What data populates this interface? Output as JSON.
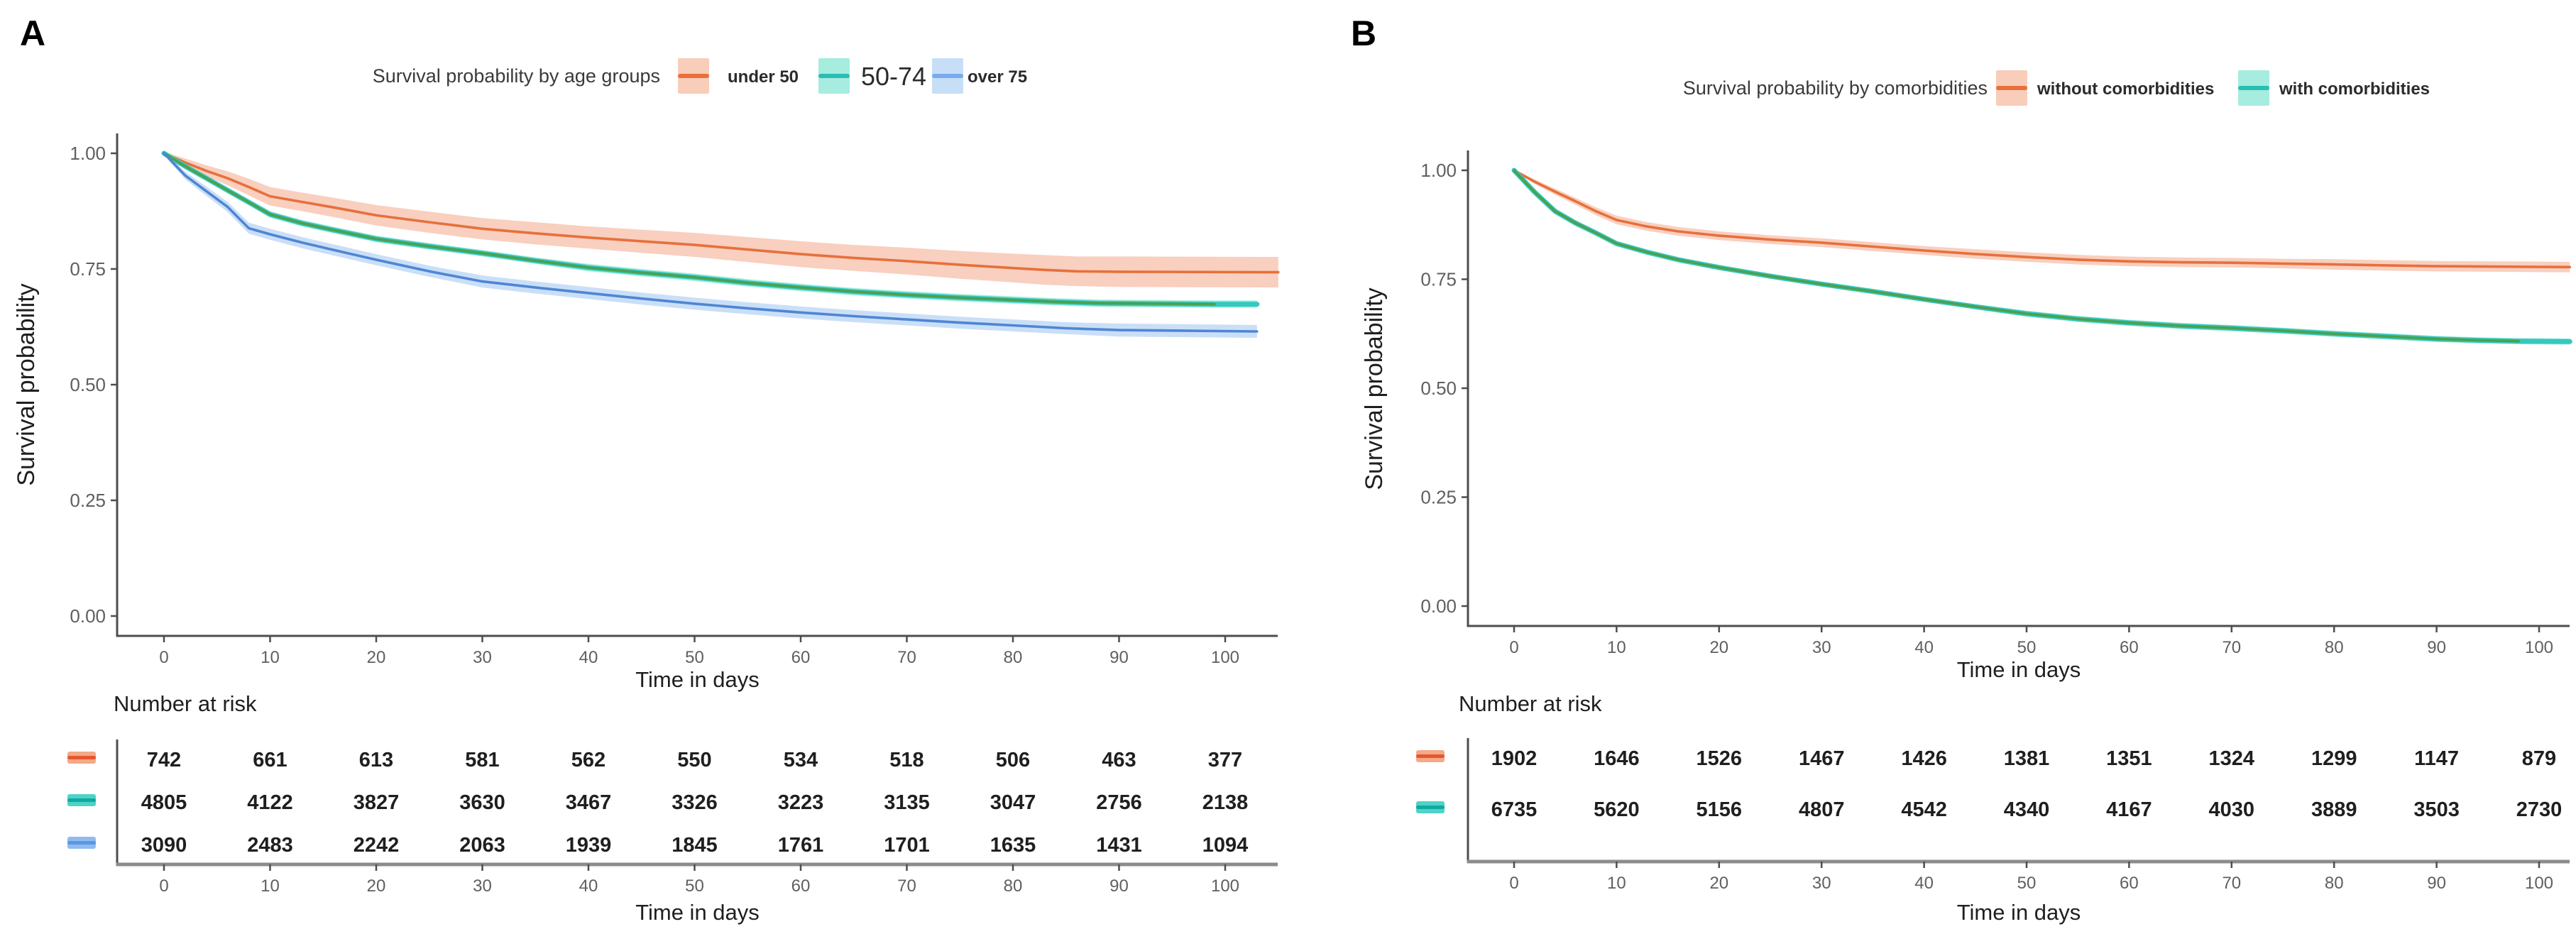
{
  "figure": {
    "background": "#ffffff"
  },
  "chart_data": [
    {
      "panel_label": "A",
      "type": "line",
      "subtype": "kaplan-meier-with-ci-bands",
      "legend": {
        "title": "Survival probability by age groups",
        "position": "top",
        "items": [
          {
            "label": "under 50",
            "line_color": "#E7703B",
            "band_color": "#F8CDBA",
            "large_label": false
          },
          {
            "label": "50-74",
            "line_color": "#29BEB4",
            "band_color": "#A6ECDF",
            "large_label": true
          },
          {
            "label": "over 75",
            "line_color": "#78ABEC",
            "band_color": "#C7DEF7",
            "large_label": false
          }
        ]
      },
      "xlabel": "Time in days",
      "ylabel": "Survival probability",
      "xlim": [
        -5,
        107
      ],
      "ylim": [
        0,
        1
      ],
      "xticks": [
        0,
        10,
        20,
        30,
        40,
        50,
        60,
        70,
        80,
        90,
        100
      ],
      "ytick_values": [
        1,
        0.75,
        0.5,
        0.25,
        0
      ],
      "ytick_labels": [
        "1.00",
        "0.75",
        "0.50",
        "0.25",
        "0.00"
      ],
      "grid": false,
      "series": [
        {
          "name": "under 50",
          "line_color": "#E7703B",
          "band_color": "#F9CFBF",
          "halo_color": null,
          "line_end": 105,
          "x": [
            0,
            2,
            4,
            6,
            8,
            10,
            13,
            16,
            20,
            25,
            30,
            35,
            40,
            45,
            50,
            55,
            60,
            65,
            70,
            75,
            80,
            83,
            86,
            90,
            105
          ],
          "y": [
            1.0,
            0.98,
            0.962,
            0.946,
            0.927,
            0.907,
            0.895,
            0.883,
            0.866,
            0.851,
            0.837,
            0.827,
            0.818,
            0.81,
            0.802,
            0.792,
            0.782,
            0.774,
            0.767,
            0.759,
            0.752,
            0.748,
            0.745,
            0.744,
            0.743
          ],
          "band_halfwidth": [
            0.003,
            0.009,
            0.012,
            0.015,
            0.018,
            0.02,
            0.02,
            0.021,
            0.022,
            0.023,
            0.023,
            0.024,
            0.024,
            0.025,
            0.026,
            0.027,
            0.028,
            0.028,
            0.029,
            0.03,
            0.031,
            0.032,
            0.032,
            0.033,
            0.033
          ]
        },
        {
          "name": "50-74",
          "line_color": "#4BA04F",
          "band_color": "#A8EDE1",
          "halo_color": "#36C8BE",
          "line_end": 99,
          "x": [
            0,
            2,
            4,
            6,
            8,
            10,
            13,
            16,
            20,
            25,
            30,
            35,
            40,
            45,
            50,
            55,
            60,
            65,
            70,
            75,
            80,
            84,
            88,
            99,
            103
          ],
          "y": [
            1.0,
            0.972,
            0.946,
            0.92,
            0.894,
            0.868,
            0.849,
            0.834,
            0.815,
            0.799,
            0.784,
            0.768,
            0.753,
            0.742,
            0.732,
            0.72,
            0.71,
            0.701,
            0.694,
            0.688,
            0.683,
            0.679,
            0.676,
            0.674,
            0.674
          ],
          "band_halfwidth": [
            0.002,
            0.004,
            0.005,
            0.006,
            0.006,
            0.007,
            0.007,
            0.007,
            0.007,
            0.007,
            0.007,
            0.007,
            0.008,
            0.008,
            0.008,
            0.008,
            0.008,
            0.008,
            0.008,
            0.008,
            0.008,
            0.008,
            0.008,
            0.008,
            0.008
          ]
        },
        {
          "name": "over 75",
          "line_color": "#4E86D4",
          "band_color": "#CADFF7",
          "halo_color": null,
          "line_end": 103,
          "x": [
            0,
            2,
            4,
            6,
            8,
            10,
            13,
            16,
            20,
            25,
            30,
            35,
            40,
            45,
            50,
            55,
            60,
            65,
            70,
            75,
            80,
            85,
            90,
            103
          ],
          "y": [
            1.0,
            0.952,
            0.918,
            0.884,
            0.838,
            0.825,
            0.807,
            0.791,
            0.77,
            0.745,
            0.723,
            0.71,
            0.698,
            0.686,
            0.675,
            0.665,
            0.656,
            0.648,
            0.641,
            0.634,
            0.628,
            0.622,
            0.618,
            0.615
          ],
          "band_halfwidth": [
            0.003,
            0.008,
            0.01,
            0.011,
            0.012,
            0.012,
            0.012,
            0.012,
            0.012,
            0.012,
            0.013,
            0.013,
            0.013,
            0.013,
            0.013,
            0.013,
            0.013,
            0.013,
            0.013,
            0.013,
            0.013,
            0.013,
            0.014,
            0.014
          ]
        }
      ],
      "risk_table": {
        "title": "Number at risk",
        "xlabel": "Time in days",
        "xticks": [
          0,
          10,
          20,
          30,
          40,
          50,
          60,
          70,
          80,
          90,
          100
        ],
        "rows": [
          {
            "group": "under 50",
            "key_line": "#E4582E",
            "key_band": "#F4A988",
            "values": [
              742,
              661,
              613,
              581,
              562,
              550,
              534,
              518,
              506,
              463,
              377
            ]
          },
          {
            "group": "50-74",
            "key_line": "#12A8A0",
            "key_band": "#4ED3C8",
            "values": [
              4805,
              4122,
              3827,
              3630,
              3467,
              3326,
              3223,
              3135,
              3047,
              2756,
              2138
            ]
          },
          {
            "group": "over 75",
            "key_line": "#5E96E0",
            "key_band": "#8FBCF0",
            "values": [
              3090,
              2483,
              2242,
              2063,
              1939,
              1845,
              1761,
              1701,
              1635,
              1431,
              1094
            ]
          }
        ]
      }
    },
    {
      "panel_label": "B",
      "type": "line",
      "subtype": "kaplan-meier-with-ci-bands",
      "legend": {
        "title": "Survival probability by comorbidities",
        "position": "top",
        "items": [
          {
            "label": "without comorbidities",
            "line_color": "#E7703B",
            "band_color": "#F8CDBA",
            "large_label": false
          },
          {
            "label": "with comorbidities",
            "line_color": "#29BEB4",
            "band_color": "#A6ECDF",
            "large_label": false
          }
        ]
      },
      "xlabel": "Time in days",
      "ylabel": "Survival probability",
      "xlim": [
        -5,
        107
      ],
      "ylim": [
        0,
        1
      ],
      "xticks": [
        0,
        10,
        20,
        30,
        40,
        50,
        60,
        70,
        80,
        90,
        100
      ],
      "ytick_values": [
        1,
        0.75,
        0.5,
        0.25,
        0
      ],
      "ytick_labels": [
        "1.00",
        "0.75",
        "0.50",
        "0.25",
        "0.00"
      ],
      "grid": false,
      "series": [
        {
          "name": "without comorbidities",
          "line_color": "#E7703B",
          "band_color": "#F9CFBF",
          "halo_color": null,
          "line_end": 103,
          "x": [
            0,
            2,
            4,
            6,
            8,
            10,
            13,
            16,
            20,
            25,
            30,
            35,
            40,
            45,
            50,
            55,
            60,
            65,
            70,
            75,
            80,
            85,
            90,
            103
          ],
          "y": [
            1.0,
            0.974,
            0.951,
            0.929,
            0.906,
            0.886,
            0.871,
            0.86,
            0.85,
            0.841,
            0.834,
            0.825,
            0.816,
            0.808,
            0.801,
            0.795,
            0.791,
            0.789,
            0.788,
            0.786,
            0.784,
            0.782,
            0.78,
            0.778
          ],
          "band_halfwidth": [
            0.002,
            0.005,
            0.007,
            0.008,
            0.009,
            0.01,
            0.01,
            0.01,
            0.01,
            0.01,
            0.01,
            0.01,
            0.01,
            0.011,
            0.011,
            0.011,
            0.011,
            0.011,
            0.011,
            0.011,
            0.012,
            0.012,
            0.012,
            0.012
          ]
        },
        {
          "name": "with comorbidities",
          "line_color": "#4BA04F",
          "band_color": "#A8EDE1",
          "halo_color": "#36C8BE",
          "line_end": 98,
          "x": [
            0,
            2,
            4,
            6,
            8,
            10,
            13,
            16,
            20,
            25,
            30,
            35,
            40,
            45,
            50,
            55,
            60,
            65,
            70,
            75,
            80,
            85,
            90,
            94,
            98,
            103
          ],
          "y": [
            1.0,
            0.95,
            0.906,
            0.879,
            0.856,
            0.832,
            0.812,
            0.795,
            0.777,
            0.757,
            0.739,
            0.722,
            0.704,
            0.687,
            0.671,
            0.659,
            0.65,
            0.643,
            0.638,
            0.632,
            0.625,
            0.619,
            0.613,
            0.61,
            0.608,
            0.607
          ],
          "band_halfwidth": [
            0.002,
            0.004,
            0.005,
            0.005,
            0.006,
            0.006,
            0.006,
            0.006,
            0.006,
            0.006,
            0.006,
            0.006,
            0.006,
            0.006,
            0.007,
            0.007,
            0.007,
            0.007,
            0.007,
            0.007,
            0.007,
            0.007,
            0.007,
            0.007,
            0.007,
            0.007
          ]
        }
      ],
      "risk_table": {
        "title": "Number at risk",
        "xlabel": "Time in days",
        "xticks": [
          0,
          10,
          20,
          30,
          40,
          50,
          60,
          70,
          80,
          90,
          100
        ],
        "rows": [
          {
            "group": "without comorbidities",
            "key_line": "#E4582E",
            "key_band": "#F4A988",
            "values": [
              1902,
              1646,
              1526,
              1467,
              1426,
              1381,
              1351,
              1324,
              1299,
              1147,
              879
            ]
          },
          {
            "group": "with comorbidities",
            "key_line": "#12A8A0",
            "key_band": "#4ED3C8",
            "values": [
              6735,
              5620,
              5156,
              4807,
              4542,
              4340,
              4167,
              4030,
              3889,
              3503,
              2730
            ]
          }
        ]
      }
    }
  ],
  "colors": {
    "axis": "#4D4D4D",
    "risk_axis": "#8C8C8C",
    "tick_text": "#5F5F5F",
    "label_text": "#1F1F1F",
    "legend_title_text": "#3A3A3A"
  }
}
